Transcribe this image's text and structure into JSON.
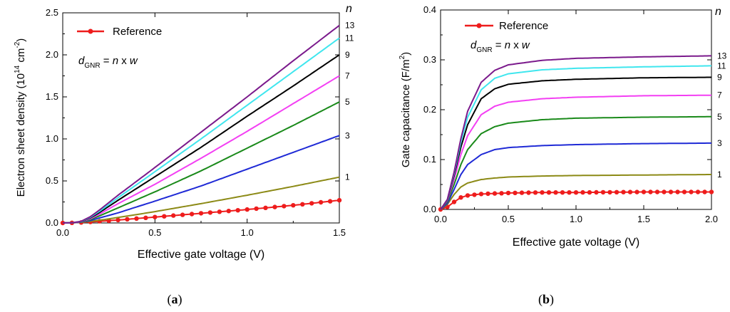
{
  "colors": {
    "Reference": "#ee1c1c",
    "1": "#8c8a16",
    "3": "#1f2ad6",
    "5": "#1a8a1a",
    "7": "#f33ff3",
    "9": "#000000",
    "11": "#3fe6ee",
    "13": "#7b1a8c"
  },
  "chart_data": [
    {
      "panel_label": "a",
      "type": "line",
      "xlabel": "Effective gate voltage (V)",
      "ylabel": {
        "main": "Electron sheet density (10",
        "sup1": "14",
        "mid": " cm",
        "sup2": "-2",
        "end": ")"
      },
      "xlim": [
        0,
        1.5
      ],
      "ylim": [
        0,
        2.5
      ],
      "x_ticks": [
        0.0,
        0.5,
        1.0,
        1.5
      ],
      "x_tick_labels": [
        "0.0",
        "0.5",
        "1.0",
        "1.5"
      ],
      "y_ticks": [
        0.0,
        0.5,
        1.0,
        1.5,
        2.0,
        2.5
      ],
      "y_tick_labels": [
        "0.0",
        "0.5",
        "1.0",
        "1.5",
        "2.0",
        "2.5"
      ],
      "legend": {
        "label": "Reference",
        "position": "top-left"
      },
      "annotation": {
        "d": "d",
        "sub": "GNR",
        "rest": " = ",
        "n": "n",
        "x": " x ",
        "w": "w"
      },
      "n_axis_title": "n",
      "series": [
        {
          "name": "Reference",
          "n": "",
          "x": [
            0,
            0.05,
            0.1,
            0.15,
            0.2,
            0.3,
            0.5,
            0.75,
            1.0,
            1.25,
            1.5
          ],
          "y": [
            0,
            0.002,
            0.006,
            0.012,
            0.02,
            0.035,
            0.07,
            0.115,
            0.16,
            0.21,
            0.27
          ]
        },
        {
          "name": "1",
          "n": "1",
          "x": [
            0,
            0.05,
            0.1,
            0.15,
            0.2,
            0.3,
            0.5,
            0.75,
            1.0,
            1.25,
            1.5
          ],
          "y": [
            0,
            0.002,
            0.008,
            0.02,
            0.033,
            0.065,
            0.135,
            0.23,
            0.33,
            0.435,
            0.545
          ]
        },
        {
          "name": "3",
          "n": "3",
          "x": [
            0,
            0.05,
            0.1,
            0.15,
            0.2,
            0.3,
            0.5,
            0.75,
            1.0,
            1.25,
            1.5
          ],
          "y": [
            0,
            0.002,
            0.01,
            0.03,
            0.06,
            0.12,
            0.26,
            0.44,
            0.64,
            0.84,
            1.04
          ]
        },
        {
          "name": "5",
          "n": "5",
          "x": [
            0,
            0.05,
            0.1,
            0.15,
            0.2,
            0.3,
            0.5,
            0.75,
            1.0,
            1.25,
            1.5
          ],
          "y": [
            0,
            0.002,
            0.012,
            0.04,
            0.085,
            0.18,
            0.37,
            0.62,
            0.89,
            1.16,
            1.44
          ]
        },
        {
          "name": "7",
          "n": "7",
          "x": [
            0,
            0.05,
            0.1,
            0.15,
            0.2,
            0.3,
            0.5,
            0.75,
            1.0,
            1.25,
            1.5
          ],
          "y": [
            0,
            0.002,
            0.014,
            0.05,
            0.105,
            0.23,
            0.46,
            0.77,
            1.09,
            1.42,
            1.75
          ]
        },
        {
          "name": "9",
          "n": "9",
          "x": [
            0,
            0.05,
            0.1,
            0.15,
            0.2,
            0.3,
            0.5,
            0.75,
            1.0,
            1.25,
            1.5
          ],
          "y": [
            0,
            0.002,
            0.016,
            0.06,
            0.125,
            0.27,
            0.55,
            0.9,
            1.27,
            1.63,
            2.0
          ]
        },
        {
          "name": "11",
          "n": "11",
          "x": [
            0,
            0.05,
            0.1,
            0.15,
            0.2,
            0.3,
            0.5,
            0.75,
            1.0,
            1.25,
            1.5
          ],
          "y": [
            0,
            0.002,
            0.018,
            0.068,
            0.14,
            0.3,
            0.61,
            1.0,
            1.4,
            1.8,
            2.2
          ]
        },
        {
          "name": "13",
          "n": "13",
          "x": [
            0,
            0.05,
            0.1,
            0.15,
            0.2,
            0.3,
            0.5,
            0.75,
            1.0,
            1.25,
            1.5
          ],
          "y": [
            0,
            0.002,
            0.02,
            0.075,
            0.155,
            0.33,
            0.66,
            1.08,
            1.5,
            1.93,
            2.35
          ]
        }
      ]
    },
    {
      "panel_label": "b",
      "type": "line",
      "xlabel": "Effective gate voltage (V)",
      "ylabel": {
        "main": "Gate capacitance (F/m",
        "sup1": "2",
        "end": ")"
      },
      "xlim": [
        0,
        2.0
      ],
      "ylim": [
        0,
        0.4
      ],
      "x_ticks": [
        0.0,
        0.5,
        1.0,
        1.5,
        2.0
      ],
      "x_tick_labels": [
        "0.0",
        "0.5",
        "1.0",
        "1.5",
        "2.0"
      ],
      "y_ticks": [
        0.0,
        0.1,
        0.2,
        0.3,
        0.4
      ],
      "y_tick_labels": [
        "0.0",
        "0.1",
        "0.2",
        "0.3",
        "0.4"
      ],
      "legend": {
        "label": "Reference",
        "position": "top-left"
      },
      "annotation": {
        "d": "d",
        "sub": "GNR",
        "rest": " = ",
        "n": "n",
        "x": " x ",
        "w": "w"
      },
      "n_axis_title": "n",
      "series": [
        {
          "name": "Reference",
          "n": "",
          "x": [
            0,
            0.05,
            0.1,
            0.15,
            0.2,
            0.3,
            0.4,
            0.5,
            0.75,
            1.0,
            1.5,
            2.0
          ],
          "y": [
            0,
            0.005,
            0.015,
            0.024,
            0.028,
            0.031,
            0.032,
            0.033,
            0.034,
            0.034,
            0.035,
            0.035
          ]
        },
        {
          "name": "1",
          "n": "1",
          "x": [
            0,
            0.05,
            0.1,
            0.15,
            0.2,
            0.3,
            0.4,
            0.5,
            0.75,
            1.0,
            1.5,
            2.0
          ],
          "y": [
            0,
            0.01,
            0.03,
            0.045,
            0.053,
            0.06,
            0.063,
            0.065,
            0.067,
            0.068,
            0.069,
            0.07
          ]
        },
        {
          "name": "3",
          "n": "3",
          "x": [
            0,
            0.05,
            0.1,
            0.15,
            0.2,
            0.3,
            0.4,
            0.5,
            0.75,
            1.0,
            1.5,
            2.0
          ],
          "y": [
            0,
            0.012,
            0.04,
            0.07,
            0.09,
            0.11,
            0.12,
            0.124,
            0.128,
            0.13,
            0.132,
            0.133
          ]
        },
        {
          "name": "5",
          "n": "5",
          "x": [
            0,
            0.05,
            0.1,
            0.15,
            0.2,
            0.3,
            0.4,
            0.5,
            0.75,
            1.0,
            1.5,
            2.0
          ],
          "y": [
            0,
            0.015,
            0.05,
            0.09,
            0.12,
            0.152,
            0.166,
            0.173,
            0.18,
            0.183,
            0.185,
            0.186
          ]
        },
        {
          "name": "7",
          "n": "7",
          "x": [
            0,
            0.05,
            0.1,
            0.15,
            0.2,
            0.3,
            0.4,
            0.5,
            0.75,
            1.0,
            1.5,
            2.0
          ],
          "y": [
            0,
            0.017,
            0.06,
            0.11,
            0.148,
            0.19,
            0.207,
            0.215,
            0.222,
            0.225,
            0.228,
            0.229
          ]
        },
        {
          "name": "9",
          "n": "9",
          "x": [
            0,
            0.05,
            0.1,
            0.15,
            0.2,
            0.3,
            0.4,
            0.5,
            0.75,
            1.0,
            1.5,
            2.0
          ],
          "y": [
            0,
            0.018,
            0.068,
            0.125,
            0.17,
            0.222,
            0.242,
            0.251,
            0.258,
            0.261,
            0.264,
            0.265
          ]
        },
        {
          "name": "11",
          "n": "11",
          "x": [
            0,
            0.05,
            0.1,
            0.15,
            0.2,
            0.3,
            0.4,
            0.5,
            0.75,
            1.0,
            1.5,
            2.0
          ],
          "y": [
            0,
            0.019,
            0.072,
            0.135,
            0.185,
            0.24,
            0.263,
            0.272,
            0.28,
            0.283,
            0.286,
            0.288
          ]
        },
        {
          "name": "13",
          "n": "13",
          "x": [
            0,
            0.05,
            0.1,
            0.15,
            0.2,
            0.3,
            0.4,
            0.5,
            0.75,
            1.0,
            1.5,
            2.0
          ],
          "y": [
            0,
            0.02,
            0.075,
            0.142,
            0.197,
            0.255,
            0.279,
            0.29,
            0.299,
            0.303,
            0.306,
            0.308
          ]
        }
      ]
    }
  ]
}
